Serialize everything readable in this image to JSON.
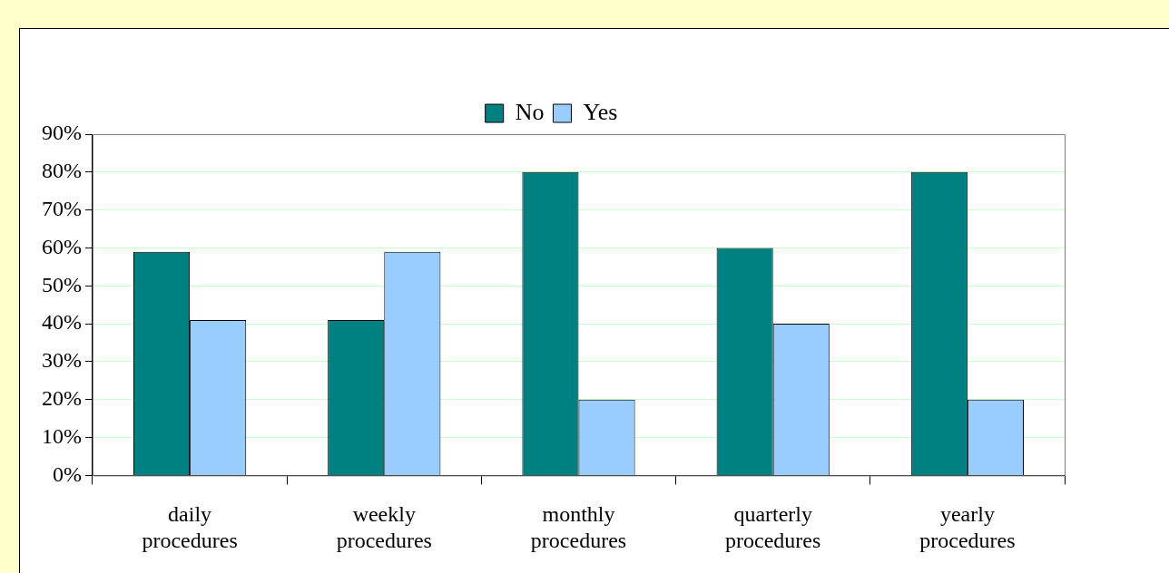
{
  "chart_data": {
    "type": "bar",
    "categories": [
      "daily procedures",
      "weekly procedures",
      "monthly procedures",
      "quarterly procedures",
      "yearly procedures"
    ],
    "series": [
      {
        "name": "No",
        "color": "#008080",
        "values": [
          59,
          41,
          80,
          60,
          80
        ]
      },
      {
        "name": "Yes",
        "color": "#99ccff",
        "values": [
          41,
          59,
          20,
          40,
          20
        ]
      }
    ],
    "ylim": [
      0,
      90
    ],
    "yticks": [
      {
        "value": 0,
        "label": "0%"
      },
      {
        "value": 10,
        "label": "10%"
      },
      {
        "value": 20,
        "label": "20%"
      },
      {
        "value": 30,
        "label": "30%"
      },
      {
        "value": 40,
        "label": "40%"
      },
      {
        "value": 50,
        "label": "50%"
      },
      {
        "value": 60,
        "label": "60%"
      },
      {
        "value": 70,
        "label": "70%"
      },
      {
        "value": 80,
        "label": "80%"
      },
      {
        "value": 90,
        "label": "90%"
      }
    ],
    "grid": "y",
    "legend": "top"
  }
}
